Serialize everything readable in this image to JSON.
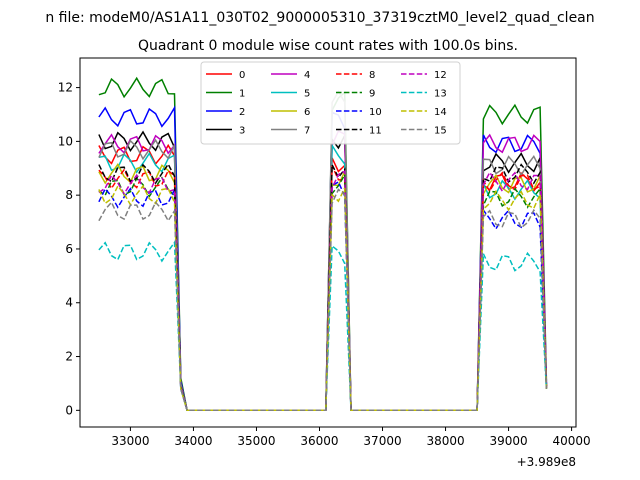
{
  "chart_data": {
    "type": "line",
    "suptitle": "n file: modeM0/AS1A11_030T02_9000005310_37319cztM0_level2_quad_clean",
    "title": "Quadrant 0 module wise count rates with 100.0s bins.",
    "xlabel": "",
    "ylabel": "",
    "x_offset_label": "+3.989e8",
    "xlim": [
      32200,
      40070
    ],
    "ylim": [
      -0.62,
      13.1
    ],
    "xticks": [
      33000,
      34000,
      35000,
      36000,
      37000,
      38000,
      39000,
      40000
    ],
    "xtick_labels": [
      "33000",
      "34000",
      "35000",
      "36000",
      "37000",
      "38000",
      "39000",
      "40000"
    ],
    "yticks": [
      0,
      2,
      4,
      6,
      8,
      10,
      12
    ],
    "ytick_labels": [
      "0",
      "2",
      "4",
      "6",
      "8",
      "10",
      "12"
    ],
    "grid": false,
    "legend_position": "upper center",
    "legend_columns": 4,
    "segments": [
      {
        "x_start": 32500,
        "x_step": 100,
        "count": 14,
        "after_x": 33900
      },
      {
        "x_start": 36200,
        "x_step": 100,
        "count": 3,
        "before_x": 36100,
        "after_x": 36500
      },
      {
        "x_start": 38600,
        "x_step": 100,
        "count": 11,
        "before_x": 38500
      }
    ],
    "series": [
      {
        "name": "0",
        "color": "#ff0000",
        "dash": false,
        "level1": 9.5,
        "level2": 9.2,
        "level3": 8.5
      },
      {
        "name": "1",
        "color": "#008000",
        "dash": false,
        "level1": 12.0,
        "level2": 11.5,
        "level3": 11.0
      },
      {
        "name": "2",
        "color": "#0000ff",
        "dash": false,
        "level1": 10.9,
        "level2": 10.8,
        "level3": 9.9
      },
      {
        "name": "3",
        "color": "#000000",
        "dash": false,
        "level1": 10.0,
        "level2": 10.1,
        "level3": 9.2
      },
      {
        "name": "4",
        "color": "#bf00bf",
        "dash": false,
        "level1": 9.9,
        "level2": 10.1,
        "level3": 9.9
      },
      {
        "name": "5",
        "color": "#00bfbf",
        "dash": false,
        "level1": 9.2,
        "level2": 9.5,
        "level3": 8.2
      },
      {
        "name": "6",
        "color": "#bfbf00",
        "dash": false,
        "level1": 8.8,
        "level2": 8.6,
        "level3": 8.4
      },
      {
        "name": "7",
        "color": "#808080",
        "dash": false,
        "level1": 9.7,
        "level2": 11.5,
        "level3": 9.1
      },
      {
        "name": "8",
        "color": "#ff0000",
        "dash": true,
        "level1": 8.6,
        "level2": 8.8,
        "level3": 8.5
      },
      {
        "name": "9",
        "color": "#008000",
        "dash": true,
        "level1": 8.3,
        "level2": 8.4,
        "level3": 7.9
      },
      {
        "name": "10",
        "color": "#0000ff",
        "dash": true,
        "level1": 7.9,
        "level2": 8.2,
        "level3": 7.1
      },
      {
        "name": "11",
        "color": "#000000",
        "dash": true,
        "level1": 8.8,
        "level2": 9.0,
        "level3": 8.8
      },
      {
        "name": "12",
        "color": "#bf00bf",
        "dash": true,
        "level1": 8.4,
        "level2": 8.6,
        "level3": 8.5
      },
      {
        "name": "13",
        "color": "#00bfbf",
        "dash": true,
        "level1": 5.9,
        "level2": 5.8,
        "level3": 5.5
      },
      {
        "name": "14",
        "color": "#bfbf00",
        "dash": true,
        "level1": 8.0,
        "level2": 8.1,
        "level3": 7.8
      },
      {
        "name": "15",
        "color": "#808080",
        "dash": true,
        "level1": 7.4,
        "level2": 7.9,
        "level3": 7.1
      }
    ]
  }
}
